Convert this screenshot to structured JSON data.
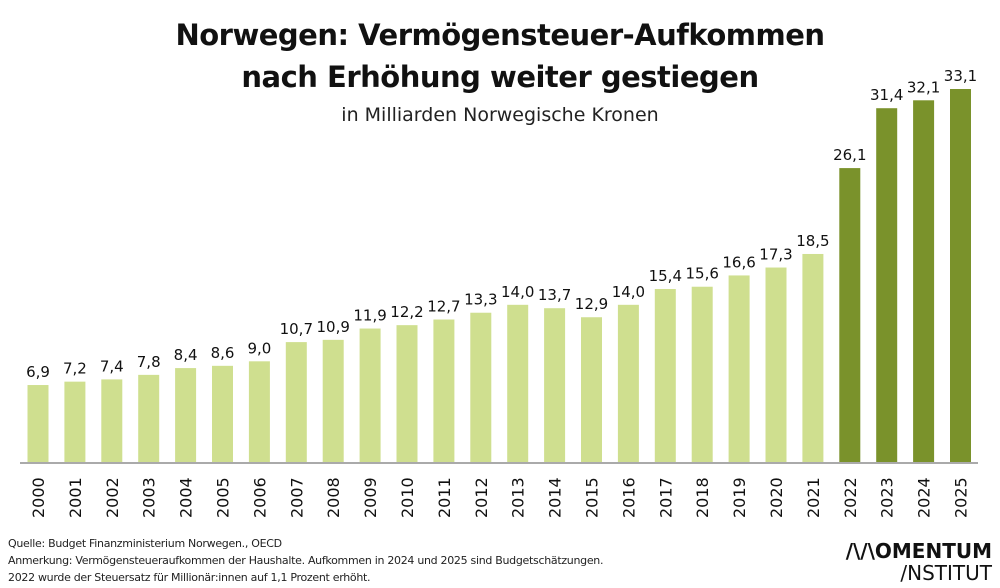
{
  "chart_data": {
    "type": "bar",
    "title": "Norwegen: Vermögensteuer-Aufkommen nach Erhöhung weiter gestiegen",
    "title_lines": [
      "Norwegen: Vermögensteuer-Aufkommen",
      "nach Erhöhung weiter gestiegen"
    ],
    "subtitle": "in Milliarden Norwegische Kronen",
    "categories": [
      "2000",
      "2001",
      "2002",
      "2003",
      "2004",
      "2005",
      "2006",
      "2007",
      "2008",
      "2009",
      "2010",
      "2011",
      "2012",
      "2013",
      "2014",
      "2015",
      "2016",
      "2017",
      "2018",
      "2019",
      "2020",
      "2021",
      "2022",
      "2023",
      "2024",
      "2025"
    ],
    "values": [
      6.9,
      7.2,
      7.4,
      7.8,
      8.4,
      8.6,
      9.0,
      10.7,
      10.9,
      11.9,
      12.2,
      12.7,
      13.3,
      14.0,
      13.7,
      12.9,
      14.0,
      15.4,
      15.6,
      16.6,
      17.3,
      18.5,
      26.1,
      31.4,
      32.1,
      33.1
    ],
    "labels": [
      "6,9",
      "7,2",
      "7,4",
      "7,8",
      "8,4",
      "8,6",
      "9,0",
      "10,7",
      "10,9",
      "11,9",
      "12,2",
      "12,7",
      "13,3",
      "14,0",
      "13,7",
      "12,9",
      "14,0",
      "15,4",
      "15,6",
      "16,6",
      "17,3",
      "18,5",
      "26,1",
      "31,4",
      "32,1",
      "33,1"
    ],
    "ylim": [
      0,
      34
    ],
    "grid": false,
    "colors": {
      "before_2022": "#cfdf8f",
      "from_2022": "#7a922b",
      "axis": "#aaaaaa"
    }
  },
  "footer": {
    "source": "Quelle: Budget Finanzministerium Norwegen., OECD",
    "note1": "Anmerkung: Vermögensteueraufkommen der Haushalte.  Aufkommen in 2024 und 2025 sind Budgetschätzungen.",
    "note2": "2022 wurde der Steuersatz für Millionär:innen auf 1,1 Prozent erhöht."
  },
  "logo": {
    "line1": "/\\/\\OMENTUM",
    "line2": "/NSTITUT"
  }
}
